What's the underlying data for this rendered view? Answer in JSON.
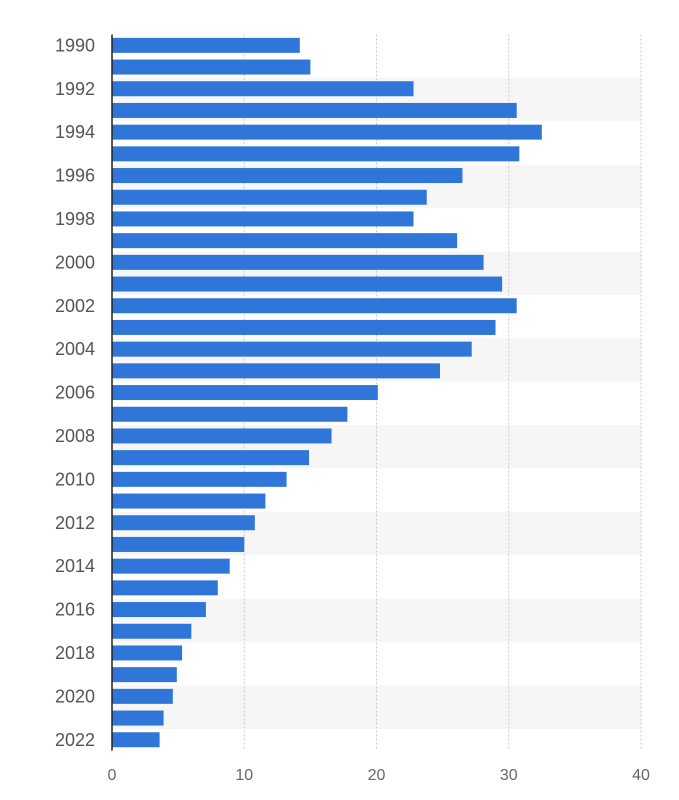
{
  "chart_data": {
    "type": "bar",
    "orientation": "horizontal",
    "title": "",
    "xlabel": "",
    "ylabel": "",
    "xlim": [
      0,
      40
    ],
    "x_ticks": [
      0,
      10,
      20,
      30,
      40
    ],
    "grid": true,
    "bar_color": "#2f76d8",
    "band_color": "#f6f6f6",
    "categories": [
      "1990",
      "1991",
      "1992",
      "1993",
      "1994",
      "1995",
      "1996",
      "1997",
      "1998",
      "1999",
      "2000",
      "2001",
      "2002",
      "2003",
      "2004",
      "2005",
      "2006",
      "2007",
      "2008",
      "2009",
      "2010",
      "2011",
      "2012",
      "2013",
      "2014",
      "2015",
      "2016",
      "2017",
      "2018",
      "2019",
      "2020",
      "2021",
      "2022"
    ],
    "category_labels": [
      "1990",
      "",
      "1992",
      "",
      "1994",
      "",
      "1996",
      "",
      "1998",
      "",
      "2000",
      "",
      "2002",
      "",
      "2004",
      "",
      "2006",
      "",
      "2008",
      "",
      "2010",
      "",
      "2012",
      "",
      "2014",
      "",
      "2016",
      "",
      "2018",
      "",
      "2020",
      "",
      "2022"
    ],
    "values": [
      14.2,
      15.0,
      22.8,
      30.6,
      32.5,
      30.8,
      26.5,
      23.8,
      22.8,
      26.1,
      28.1,
      29.5,
      30.6,
      29.0,
      27.2,
      24.8,
      20.1,
      17.8,
      16.6,
      14.9,
      13.2,
      11.6,
      10.8,
      10.0,
      8.9,
      8.0,
      7.1,
      6.0,
      5.3,
      4.9,
      4.6,
      3.9,
      3.6
    ]
  }
}
